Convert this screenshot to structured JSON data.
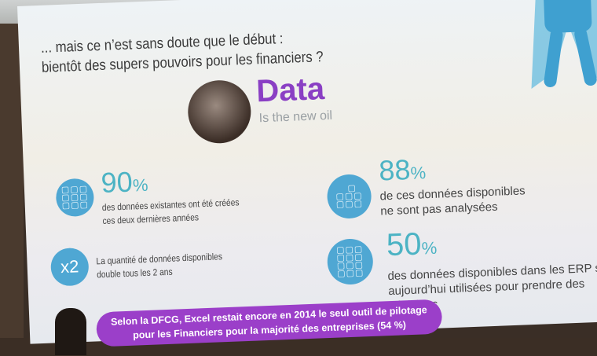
{
  "slide": {
    "title_line1": "... mais ce n’est sans doute que le début :",
    "title_line2": "bientôt des supers pouvoirs pour les financiers ?",
    "headline": "Data",
    "tagline": "Is the new oil",
    "stats": [
      {
        "value": "90",
        "unit": "%",
        "line1": "des données existantes ont été créées",
        "line2": "ces deux dernières années",
        "icon": "grid-icon"
      },
      {
        "value": "88",
        "unit": "%",
        "line1": "de ces données disponibles",
        "line2": "ne sont pas analysées",
        "icon": "grid-icon"
      },
      {
        "value": "x2",
        "line1": "La quantité de données disponibles",
        "line2": "double tous les 2 ans"
      },
      {
        "value": "50",
        "unit": "%",
        "line1": "des données disponibles dans les ERP son",
        "line2": "aujourd’hui utilisées pour prendre des",
        "line3": "décisions",
        "icon": "grid-icon"
      }
    ],
    "banner_line1": "Selon la DFCG, Excel restait encore en 2014 le seul outil de pilotage",
    "banner_line2": "pour les Financiers pour la majorité des entreprises (54 %)",
    "colors": {
      "accent_purple": "#8a3fc4",
      "banner": "#9b3fc9",
      "icon_blue": "#4fa7d3",
      "stat_teal": "#4cb3c4"
    }
  }
}
